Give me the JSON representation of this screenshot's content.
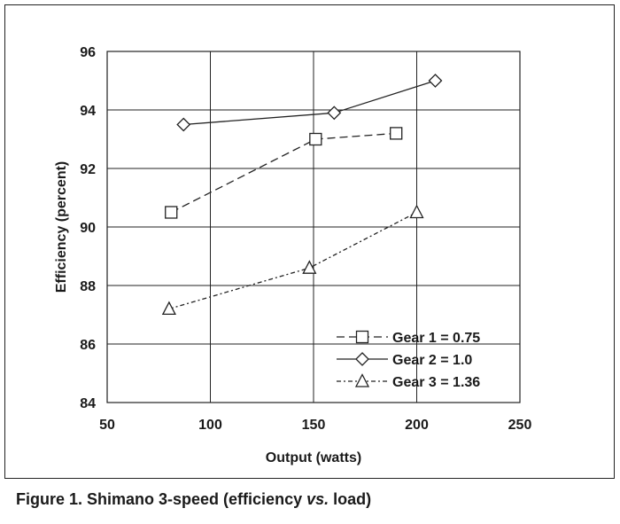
{
  "chart_data": {
    "type": "line",
    "xlabel": "Output (watts)",
    "ylabel": "Efficiency (percent)",
    "xlim": [
      50,
      250
    ],
    "ylim": [
      84,
      96
    ],
    "xticks": [
      50,
      100,
      150,
      200,
      250
    ],
    "yticks": [
      84,
      86,
      88,
      90,
      92,
      94,
      96
    ],
    "grid": true,
    "legend_position": "bottom-right",
    "series": [
      {
        "name": "Gear 1 = 0.75",
        "marker": "square",
        "line_style": "dashed",
        "x": [
          81,
          151,
          190
        ],
        "y": [
          90.5,
          93.0,
          93.2
        ]
      },
      {
        "name": "Gear 2 = 1.0",
        "marker": "diamond",
        "line_style": "solid",
        "x": [
          87,
          160,
          209
        ],
        "y": [
          93.5,
          93.9,
          95.0
        ]
      },
      {
        "name": "Gear 3 = 1.36",
        "marker": "triangle",
        "line_style": "dotted",
        "x": [
          80,
          148,
          200
        ],
        "y": [
          87.2,
          88.6,
          90.5
        ]
      }
    ]
  },
  "caption": {
    "prefix": "Figure 1. Shimano 3-speed (efficiency ",
    "vs": "vs.",
    "suffix": " load)"
  }
}
